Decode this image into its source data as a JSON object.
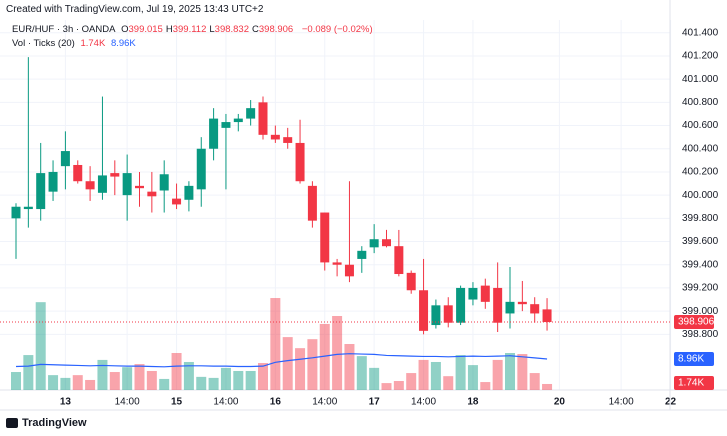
{
  "header": {
    "title": "Created with TradingView.com, Jul 19, 2025 13:43 UTC+2"
  },
  "brand": "TradingView",
  "chart_data": {
    "type": "candlestick",
    "title": "EUR/HUF · 3h · OANDA",
    "ohlc_prefixes": [
      "O",
      "H",
      "L",
      "C"
    ],
    "change_label": "−0.089 (−0.02%)",
    "categories": [
      null,
      null,
      null,
      null,
      "13",
      null,
      null,
      null,
      null,
      "14:00",
      null,
      null,
      null,
      "15",
      null,
      null,
      null,
      "14:00",
      null,
      null,
      null,
      "16",
      null,
      null,
      null,
      "14:00",
      null,
      null,
      null,
      "17",
      null,
      null,
      null,
      "14:00",
      null,
      null,
      null,
      "18",
      null,
      null,
      null,
      null,
      null,
      null,
      "20",
      null,
      null,
      null,
      null,
      "14:00",
      null,
      null,
      null,
      "22"
    ],
    "open": [
      399.8,
      399.88,
      399.88,
      400.03,
      400.25,
      400.26,
      400.12,
      400.02,
      400.19,
      400.0,
      400.08,
      400.03,
      400.04,
      399.97,
      399.96,
      400.05,
      400.4,
      400.58,
      400.63,
      400.66,
      400.8,
      400.52,
      400.5,
      400.45,
      400.08,
      399.85,
      399.42,
      399.4,
      399.45,
      399.55,
      399.62,
      399.56,
      399.33,
      399.18,
      398.88,
      399.05,
      398.9,
      399.1,
      399.22,
      399.2,
      398.98,
      399.08,
      399.06,
      399.015,
      null,
      null,
      null,
      null,
      null,
      null,
      null,
      null,
      null,
      null
    ],
    "high": [
      399.93,
      401.19,
      400.45,
      400.3,
      400.55,
      400.3,
      400.25,
      400.85,
      400.3,
      400.35,
      400.2,
      400.2,
      400.3,
      400.1,
      400.12,
      400.5,
      400.75,
      400.7,
      400.7,
      400.82,
      400.85,
      400.6,
      400.58,
      400.65,
      400.12,
      399.85,
      399.45,
      400.12,
      399.56,
      399.75,
      399.7,
      399.7,
      399.35,
      399.45,
      399.1,
      399.12,
      399.22,
      399.25,
      399.28,
      399.42,
      399.38,
      399.26,
      399.12,
      399.112,
      null,
      null,
      null,
      null,
      null,
      null,
      null,
      null,
      null,
      null
    ],
    "low": [
      399.45,
      399.72,
      399.78,
      399.95,
      400.05,
      400.1,
      399.95,
      399.96,
      400.0,
      399.78,
      399.9,
      399.85,
      399.85,
      399.88,
      399.86,
      399.9,
      400.3,
      400.05,
      400.55,
      400.6,
      400.48,
      400.45,
      400.4,
      400.1,
      399.72,
      399.35,
      399.3,
      399.25,
      399.33,
      399.5,
      399.55,
      399.3,
      399.15,
      398.8,
      398.85,
      398.86,
      398.88,
      399.05,
      399.02,
      398.82,
      398.85,
      399.0,
      398.9,
      398.832,
      null,
      null,
      null,
      null,
      null,
      null,
      null,
      null,
      null,
      null
    ],
    "close": [
      399.9,
      399.9,
      400.19,
      400.2,
      400.38,
      400.12,
      400.05,
      400.17,
      400.16,
      400.19,
      400.06,
      399.99,
      400.18,
      399.92,
      400.08,
      400.4,
      400.66,
      400.63,
      400.66,
      400.75,
      400.52,
      400.48,
      400.45,
      400.12,
      399.78,
      399.42,
      399.4,
      399.3,
      399.52,
      399.62,
      399.56,
      399.32,
      399.18,
      398.83,
      399.05,
      398.9,
      399.2,
      399.2,
      399.08,
      398.9,
      399.08,
      399.06,
      398.98,
      398.906,
      null,
      null,
      null,
      null,
      null,
      null,
      null,
      null,
      null,
      null
    ],
    "up_color": "#089981",
    "down_color": "#f23645",
    "ylim": [
      398.32,
      401.51
    ],
    "yticks": [
      {
        "value": 398.8,
        "label": "398.800"
      },
      {
        "value": 399.0,
        "label": "399.000"
      },
      {
        "value": 399.2,
        "label": "399.200"
      },
      {
        "value": 399.4,
        "label": "399.400"
      },
      {
        "value": 399.6,
        "label": "399.600"
      },
      {
        "value": 399.8,
        "label": "399.800"
      },
      {
        "value": 400.0,
        "label": "400.000"
      },
      {
        "value": 400.2,
        "label": "400.200"
      },
      {
        "value": 400.4,
        "label": "400.400"
      },
      {
        "value": 400.6,
        "label": "400.600"
      },
      {
        "value": 400.8,
        "label": "400.800"
      },
      {
        "value": 401.0,
        "label": "401.000"
      },
      {
        "value": 401.2,
        "label": "401.200"
      },
      {
        "value": 401.4,
        "label": "401.400"
      }
    ],
    "grid": true,
    "volume": {
      "name": "Vol · Ticks (20)",
      "axis": "y2",
      "values": [
        5200,
        10100,
        25400,
        4300,
        3500,
        4300,
        2900,
        8700,
        5200,
        6600,
        7500,
        5500,
        3200,
        10700,
        8100,
        3800,
        3500,
        6400,
        5500,
        5500,
        7800,
        26600,
        15300,
        12100,
        14700,
        19100,
        21400,
        13300,
        9800,
        6400,
        2000,
        2600,
        4900,
        8700,
        8100,
        4000,
        10100,
        7200,
        2300,
        8700,
        10700,
        10400,
        4900,
        1740,
        null,
        null,
        null,
        null,
        null,
        null,
        null,
        null,
        null,
        null
      ],
      "last_label": "1.74K",
      "ma_values": [
        6800,
        6900,
        7400,
        7300,
        7200,
        7100,
        7000,
        7100,
        7000,
        6900,
        6900,
        6800,
        6700,
        6900,
        7000,
        7000,
        6900,
        6900,
        6800,
        6800,
        6900,
        8000,
        8500,
        8900,
        9300,
        9800,
        10300,
        10500,
        10400,
        10300,
        10000,
        9900,
        9800,
        9700,
        9700,
        9600,
        9700,
        9800,
        9700,
        9800,
        9900,
        9600,
        9300,
        8960,
        null,
        null,
        null,
        null,
        null,
        null,
        null,
        null,
        null,
        null
      ],
      "ma_color": "#2962ff",
      "ma_last_label": "8.96K"
    },
    "y2lim": [
      0,
      107000
    ]
  }
}
